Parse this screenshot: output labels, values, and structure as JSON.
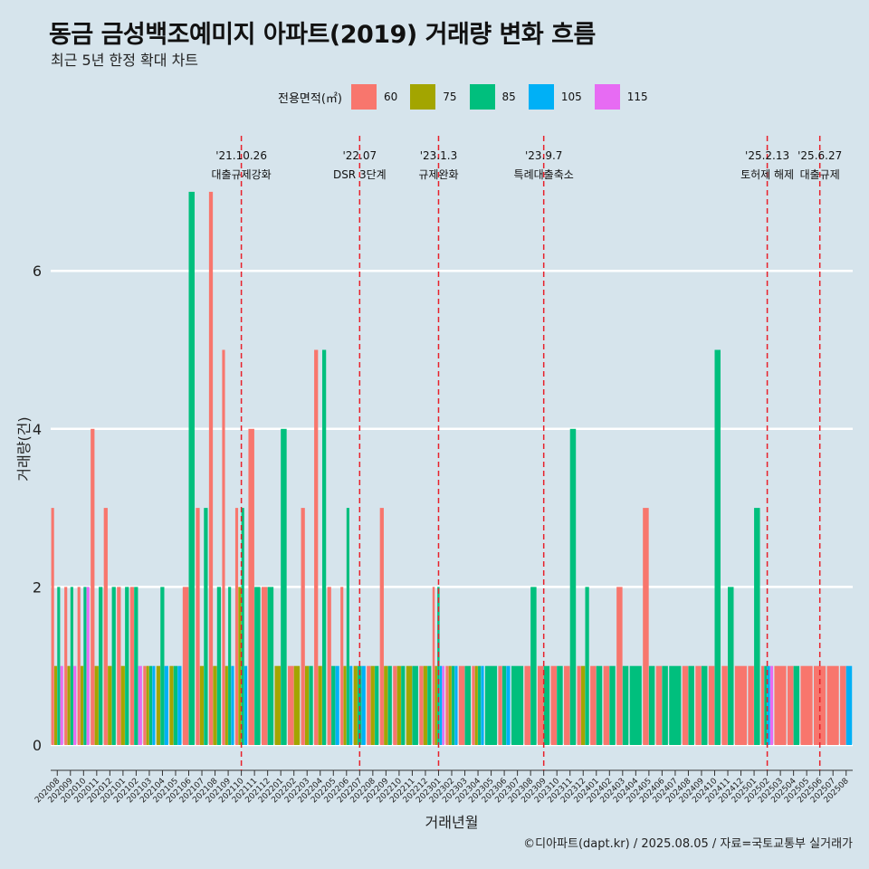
{
  "header": {
    "title": "동금 금성백조예미지 아파트(2019) 거래량 변화 흐름",
    "subtitle": "최근 5년 한정 확대 차트"
  },
  "legend": {
    "title": "전용면적(㎡)",
    "items": [
      {
        "label": "60",
        "color": "#f8766d"
      },
      {
        "label": "75",
        "color": "#a3a500"
      },
      {
        "label": "85",
        "color": "#00bf7d"
      },
      {
        "label": "105",
        "color": "#00b0f6"
      },
      {
        "label": "115",
        "color": "#e76bf3"
      }
    ]
  },
  "footer": {
    "credit": "©디아파트(dapt.kr) / 2025.08.05 / 자료=국토교통부 실거래가"
  },
  "chart_data": {
    "type": "bar",
    "xlabel": "거래년월",
    "ylabel": "거래량(건)",
    "ylim": [
      0,
      7.3
    ],
    "yticks": [
      0,
      2,
      4,
      6
    ],
    "grid": true,
    "legend_position": "top",
    "categories": [
      "202008",
      "202009",
      "202010",
      "202011",
      "202012",
      "202101",
      "202102",
      "202103",
      "202104",
      "202105",
      "202106",
      "202107",
      "202108",
      "202109",
      "202110",
      "202111",
      "202112",
      "202201",
      "202202",
      "202203",
      "202204",
      "202205",
      "202206",
      "202207",
      "202208",
      "202209",
      "202210",
      "202211",
      "202212",
      "202301",
      "202302",
      "202303",
      "202304",
      "202305",
      "202306",
      "202307",
      "202308",
      "202309",
      "202310",
      "202311",
      "202312",
      "202401",
      "202402",
      "202403",
      "202404",
      "202405",
      "202406",
      "202407",
      "202408",
      "202409",
      "202410",
      "202411",
      "202412",
      "202501",
      "202502",
      "202503",
      "202504",
      "202505",
      "202506",
      "202507",
      "202508"
    ],
    "series": [
      {
        "name": "60",
        "color": "#f8766d",
        "values": [
          3,
          2,
          2,
          4,
          3,
          2,
          2,
          1,
          0,
          0,
          2,
          3,
          7,
          5,
          3,
          4,
          2,
          0,
          1,
          3,
          5,
          2,
          2,
          0,
          1,
          3,
          1,
          0,
          1,
          2,
          1,
          1,
          1,
          0,
          1,
          0,
          1,
          1,
          1,
          1,
          1,
          1,
          1,
          2,
          0,
          3,
          1,
          0,
          1,
          1,
          1,
          1,
          1,
          1,
          1,
          1,
          1,
          1,
          1,
          1,
          1
        ]
      },
      {
        "name": "75",
        "color": "#a3a500",
        "values": [
          1,
          1,
          1,
          1,
          1,
          1,
          0,
          1,
          1,
          1,
          0,
          1,
          1,
          1,
          2,
          0,
          0,
          1,
          1,
          1,
          1,
          0,
          1,
          1,
          1,
          1,
          1,
          1,
          1,
          1,
          1,
          0,
          1,
          0,
          0,
          0,
          0,
          0,
          0,
          0,
          1,
          0,
          0,
          0,
          0,
          0,
          0,
          0,
          0,
          0,
          0,
          0,
          0,
          0,
          0,
          0,
          0,
          0,
          0,
          0,
          0
        ]
      },
      {
        "name": "85",
        "color": "#00bf7d",
        "values": [
          2,
          2,
          2,
          2,
          2,
          2,
          2,
          1,
          2,
          1,
          7,
          3,
          2,
          2,
          3,
          2,
          2,
          4,
          0,
          1,
          5,
          1,
          3,
          1,
          1,
          1,
          1,
          1,
          1,
          2,
          1,
          1,
          1,
          1,
          1,
          1,
          2,
          1,
          1,
          4,
          2,
          1,
          1,
          1,
          1,
          1,
          1,
          1,
          1,
          1,
          5,
          2,
          0,
          3,
          1,
          0,
          1,
          0,
          0,
          0,
          0
        ]
      },
      {
        "name": "105",
        "color": "#00b0f6",
        "values": [
          0,
          0,
          0,
          0,
          0,
          0,
          0,
          1,
          1,
          1,
          0,
          0,
          0,
          1,
          1,
          0,
          0,
          0,
          0,
          0,
          0,
          1,
          1,
          1,
          0,
          0,
          0,
          0,
          0,
          1,
          1,
          0,
          1,
          0,
          1,
          0,
          0,
          0,
          0,
          0,
          0,
          0,
          0,
          0,
          0,
          0,
          0,
          0,
          0,
          0,
          0,
          0,
          0,
          0,
          1,
          0,
          0,
          0,
          0,
          0,
          1
        ]
      },
      {
        "name": "115",
        "color": "#e76bf3",
        "values": [
          1,
          1,
          2,
          0,
          0,
          0,
          1,
          0,
          0,
          0,
          0,
          0,
          0,
          0,
          0,
          0,
          0,
          0,
          0,
          0,
          0,
          0,
          0,
          0,
          0,
          0,
          0,
          0,
          0,
          1,
          0,
          0,
          0,
          0,
          0,
          0,
          0,
          0,
          0,
          0,
          0,
          0,
          0,
          0,
          0,
          0,
          0,
          0,
          0,
          0,
          0,
          0,
          0,
          0,
          1,
          0,
          0,
          0,
          0,
          0,
          0
        ]
      }
    ],
    "annotations": [
      {
        "date": "'21.10.26",
        "label": "대출규제강화",
        "x_category": "202110"
      },
      {
        "date": "'22.07",
        "label": "DSR 3단계",
        "x_category": "202207"
      },
      {
        "date": "'23.1.3",
        "label": "규제완화",
        "x_category": "202301"
      },
      {
        "date": "'23.9.7",
        "label": "특례대출축소",
        "x_category": "202309"
      },
      {
        "date": "'25.2.13",
        "label": "토허제 해제",
        "x_category": "202502"
      },
      {
        "date": "'25.6.27",
        "label": "대출규제",
        "x_category": "202506"
      }
    ]
  }
}
